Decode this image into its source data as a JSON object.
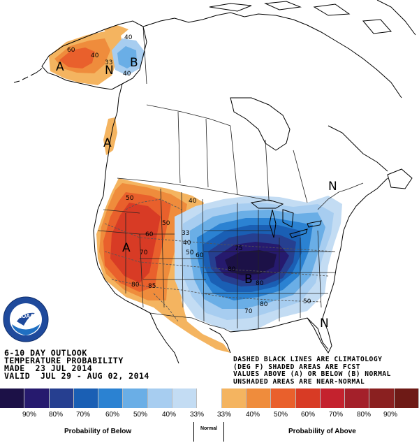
{
  "title": {
    "line1": "6-10 DAY OUTLOOK",
    "line2": "TEMPERATURE PROBABILITY",
    "line3": "MADE  23 JUL 2014",
    "line4": "VALID  JUL 29 - AUG 02, 2014"
  },
  "note": {
    "line1": "DASHED BLACK LINES ARE CLIMATOLOGY",
    "line2": "(DEG F) SHADED AREAS ARE FCST",
    "line3": "VALUES ABOVE (A) OR BELOW (B) NORMAL",
    "line4": "UNSHADED AREAS ARE NEAR-NORMAL"
  },
  "logo": {
    "text": "NOAA",
    "ring_text": "NATIONAL OCEANIC AND ATMOSPHERIC ADMINISTRATION",
    "ring_text_bottom": "U.S. DEPARTMENT OF COMMERCE"
  },
  "legend": {
    "colors": [
      "#1c1147",
      "#261a6e",
      "#263f90",
      "#1a5fb4",
      "#2b82d2",
      "#6aaee6",
      "#a7cdf0",
      "#c3dcf3",
      "#ffffff",
      "#f4b460",
      "#ef8c3c",
      "#e9602c",
      "#d83b25",
      "#c4222e",
      "#a4202a",
      "#8a2020",
      "#6e1a16"
    ],
    "tick_labels": [
      "90%",
      "80%",
      "70%",
      "60%",
      "50%",
      "40%",
      "33%",
      "33%",
      "40%",
      "50%",
      "60%",
      "70%",
      "80%",
      "90%"
    ],
    "below_caption": "Probability of Below",
    "normal_caption": "Normal",
    "above_caption": "Probability of Above"
  },
  "map_labels": {
    "above": "A",
    "below": "B",
    "near_normal": "N",
    "contours": [
      "33",
      "40",
      "50",
      "60",
      "70",
      "75",
      "80",
      "85"
    ]
  },
  "palette": {
    "land_line": "#000000",
    "state_line": "#222222",
    "climatology_line": "#555555"
  }
}
